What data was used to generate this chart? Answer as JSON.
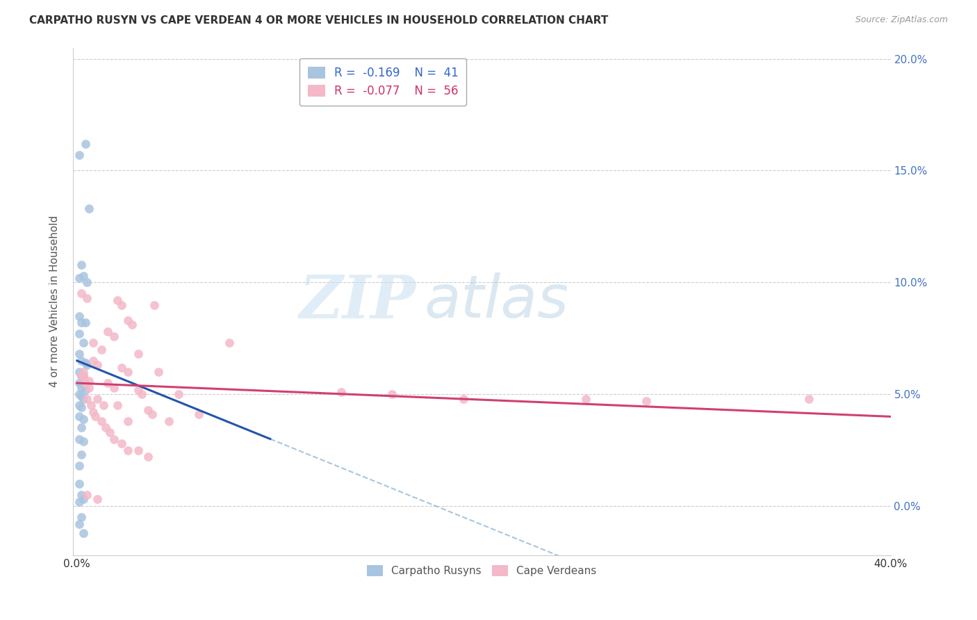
{
  "title": "CARPATHO RUSYN VS CAPE VERDEAN 4 OR MORE VEHICLES IN HOUSEHOLD CORRELATION CHART",
  "source": "Source: ZipAtlas.com",
  "ylabel": "4 or more Vehicles in Household",
  "watermark_zip": "ZIP",
  "watermark_atlas": "atlas",
  "legend_r1": "R =  -0.169",
  "legend_n1": "N =  41",
  "legend_r2": "R =  -0.077",
  "legend_n2": "N =  56",
  "blue_color": "#a8c4e0",
  "blue_line_color": "#2255aa",
  "pink_color": "#f4b8c8",
  "pink_line_color": "#d04070",
  "dashed_color": "#90b8d8",
  "blue_scatter": [
    [
      0.001,
      0.157
    ],
    [
      0.004,
      0.162
    ],
    [
      0.006,
      0.133
    ],
    [
      0.002,
      0.108
    ],
    [
      0.001,
      0.102
    ],
    [
      0.003,
      0.103
    ],
    [
      0.005,
      0.1
    ],
    [
      0.001,
      0.085
    ],
    [
      0.002,
      0.082
    ],
    [
      0.004,
      0.082
    ],
    [
      0.001,
      0.077
    ],
    [
      0.003,
      0.073
    ],
    [
      0.001,
      0.068
    ],
    [
      0.002,
      0.065
    ],
    [
      0.004,
      0.064
    ],
    [
      0.005,
      0.063
    ],
    [
      0.001,
      0.06
    ],
    [
      0.002,
      0.058
    ],
    [
      0.003,
      0.058
    ],
    [
      0.001,
      0.055
    ],
    [
      0.002,
      0.053
    ],
    [
      0.004,
      0.052
    ],
    [
      0.001,
      0.05
    ],
    [
      0.002,
      0.049
    ],
    [
      0.003,
      0.048
    ],
    [
      0.001,
      0.045
    ],
    [
      0.002,
      0.044
    ],
    [
      0.001,
      0.04
    ],
    [
      0.003,
      0.039
    ],
    [
      0.002,
      0.035
    ],
    [
      0.001,
      0.03
    ],
    [
      0.003,
      0.029
    ],
    [
      0.002,
      0.023
    ],
    [
      0.001,
      0.018
    ],
    [
      0.001,
      0.01
    ],
    [
      0.002,
      0.005
    ],
    [
      0.001,
      0.002
    ],
    [
      0.003,
      0.003
    ],
    [
      0.002,
      -0.005
    ],
    [
      0.001,
      -0.008
    ],
    [
      0.003,
      -0.012
    ]
  ],
  "pink_scatter": [
    [
      0.002,
      0.095
    ],
    [
      0.005,
      0.093
    ],
    [
      0.02,
      0.092
    ],
    [
      0.022,
      0.09
    ],
    [
      0.038,
      0.09
    ],
    [
      0.025,
      0.083
    ],
    [
      0.027,
      0.081
    ],
    [
      0.015,
      0.078
    ],
    [
      0.018,
      0.076
    ],
    [
      0.008,
      0.073
    ],
    [
      0.012,
      0.07
    ],
    [
      0.03,
      0.068
    ],
    [
      0.008,
      0.065
    ],
    [
      0.01,
      0.063
    ],
    [
      0.022,
      0.062
    ],
    [
      0.025,
      0.06
    ],
    [
      0.04,
      0.06
    ],
    [
      0.003,
      0.058
    ],
    [
      0.006,
      0.056
    ],
    [
      0.015,
      0.055
    ],
    [
      0.018,
      0.053
    ],
    [
      0.03,
      0.052
    ],
    [
      0.032,
      0.05
    ],
    [
      0.05,
      0.05
    ],
    [
      0.01,
      0.048
    ],
    [
      0.013,
      0.045
    ],
    [
      0.02,
      0.045
    ],
    [
      0.035,
      0.043
    ],
    [
      0.037,
      0.041
    ],
    [
      0.06,
      0.041
    ],
    [
      0.025,
      0.038
    ],
    [
      0.045,
      0.038
    ],
    [
      0.003,
      0.06
    ],
    [
      0.002,
      0.058
    ],
    [
      0.004,
      0.055
    ],
    [
      0.006,
      0.053
    ],
    [
      0.005,
      0.048
    ],
    [
      0.007,
      0.045
    ],
    [
      0.008,
      0.042
    ],
    [
      0.009,
      0.04
    ],
    [
      0.012,
      0.038
    ],
    [
      0.014,
      0.035
    ],
    [
      0.016,
      0.033
    ],
    [
      0.018,
      0.03
    ],
    [
      0.022,
      0.028
    ],
    [
      0.025,
      0.025
    ],
    [
      0.03,
      0.025
    ],
    [
      0.035,
      0.022
    ],
    [
      0.075,
      0.073
    ],
    [
      0.13,
      0.051
    ],
    [
      0.155,
      0.05
    ],
    [
      0.19,
      0.048
    ],
    [
      0.25,
      0.048
    ],
    [
      0.28,
      0.047
    ],
    [
      0.36,
      0.048
    ],
    [
      0.005,
      0.005
    ],
    [
      0.01,
      0.003
    ]
  ],
  "xlim": [
    -0.002,
    0.4
  ],
  "ylim": [
    -0.022,
    0.205
  ],
  "xticks": [
    0.0,
    0.05,
    0.1,
    0.15,
    0.2,
    0.25,
    0.3,
    0.35,
    0.4
  ],
  "yticks": [
    0.0,
    0.05,
    0.1,
    0.15,
    0.2
  ],
  "ytick_labels_right": [
    "0.0%",
    "5.0%",
    "10.0%",
    "15.0%",
    "20.0%"
  ],
  "xtick_labels": [
    "0.0%",
    "",
    "",
    "",
    "",
    "",
    "",
    "",
    "40.0%"
  ],
  "blue_line_x": [
    0.0,
    0.095
  ],
  "blue_line_y": [
    0.065,
    0.03
  ],
  "pink_line_x": [
    0.0,
    0.4
  ],
  "pink_line_y": [
    0.055,
    0.04
  ]
}
